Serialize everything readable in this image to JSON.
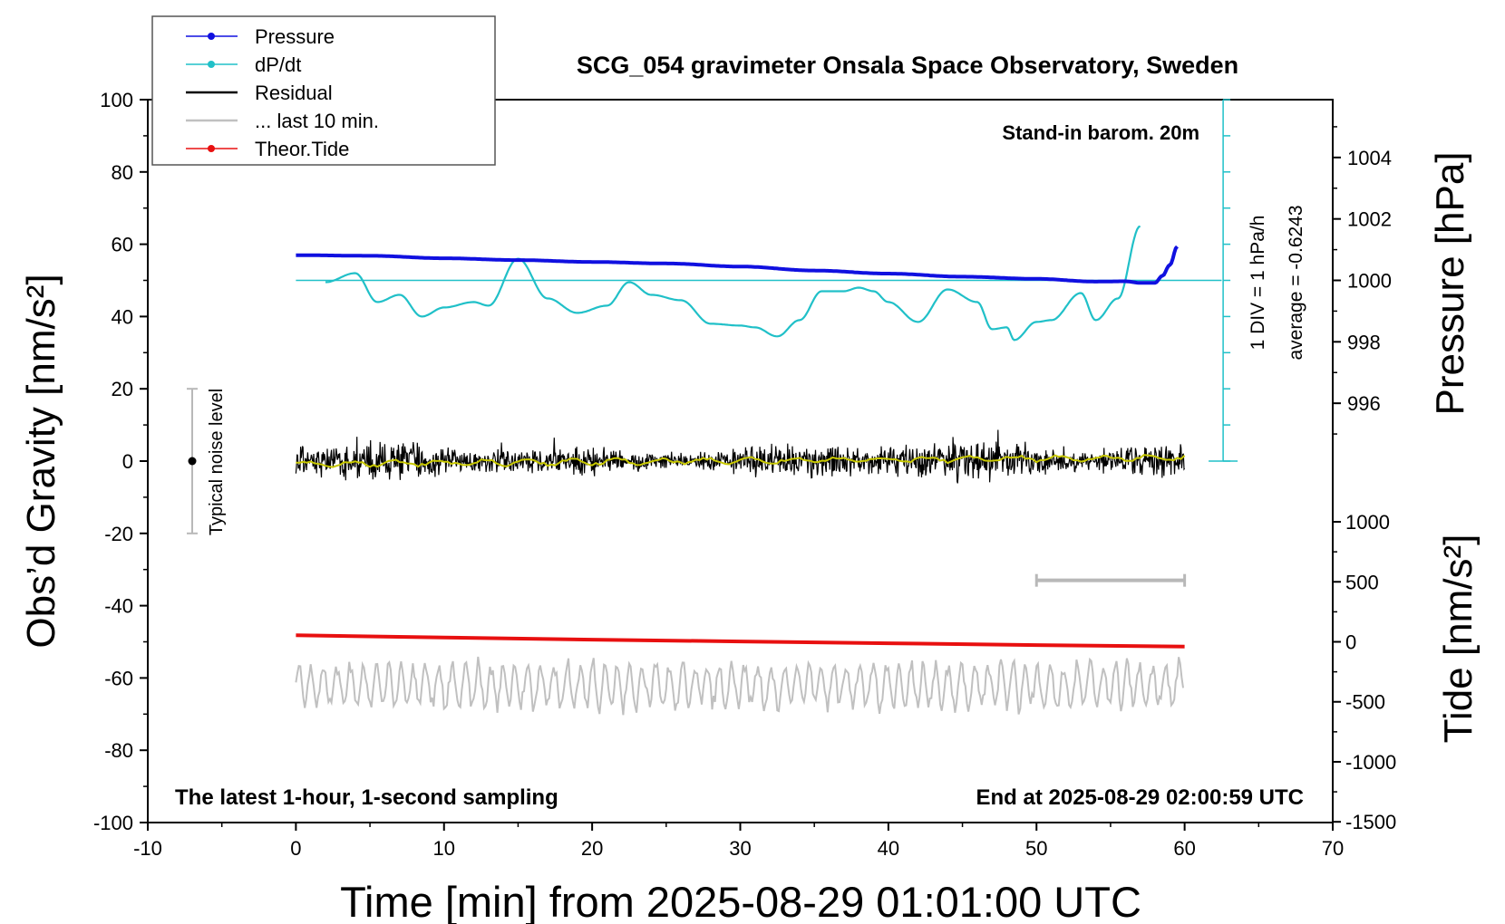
{
  "chart_data": {
    "type": "line",
    "title": "SCG_054 gravimeter Onsala Space Observatory, Sweden",
    "xlabel": "Time [min] from 2025-08-29 01:01:00 UTC",
    "ylabel_left": "Obs’d Gravity [nm/s²]",
    "ylabel_pressure": "Pressure [hPa]",
    "ylabel_tide": "Tide [nm/s²]",
    "xlim": [
      -10,
      70
    ],
    "ylim": [
      -100,
      100
    ],
    "xticks": [
      "-10",
      "0",
      "10",
      "20",
      "30",
      "40",
      "50",
      "60",
      "70"
    ],
    "xtick_values": [
      -10,
      0,
      10,
      20,
      30,
      40,
      50,
      60,
      70
    ],
    "yticks": [
      "-100",
      "-80",
      "-60",
      "-40",
      "-20",
      "0",
      "20",
      "40",
      "60",
      "80",
      "100"
    ],
    "ytick_values": [
      -100,
      -80,
      -60,
      -40,
      -20,
      0,
      20,
      40,
      60,
      80,
      100
    ],
    "pressure_axis": {
      "ticks": [
        "996",
        "998",
        "1000",
        "1002",
        "1004"
      ],
      "tick_values": [
        996,
        998,
        1000,
        1002,
        1004
      ],
      "range": [
        994,
        1006
      ]
    },
    "tide_axis": {
      "ticks": [
        "-1500",
        "-1000",
        "-500",
        "0",
        "500",
        "1000"
      ],
      "tick_values": [
        -1500,
        -1000,
        -500,
        0,
        500,
        1000
      ],
      "range": [
        -1500,
        1000
      ]
    },
    "legend_position": "top-left",
    "legend": [
      "Pressure",
      "dP/dt",
      "Residual",
      "... last 10 min.",
      "Theor.Tide"
    ],
    "annotations": {
      "stand_in": "Stand-in barom. 20m",
      "latest": "The latest 1-hour, 1-second sampling",
      "end_at": "End at 2025-08-29 02:00:59 UTC",
      "div": "1 DIV = 1 hPa/h",
      "average": "average = -0.6243",
      "noise": "Typical noise level"
    },
    "colors": {
      "pressure": "#1010e0",
      "dpdt": "#20c0c8",
      "residual": "#000000",
      "residual_smooth": "#c8c800",
      "last10": "#c0c0c0",
      "tide": "#e81010"
    },
    "series": [
      {
        "name": "Pressure",
        "unit": "hPa",
        "x": [
          0,
          5,
          10,
          15,
          20,
          25,
          30,
          35,
          40,
          45,
          50,
          54,
          56,
          57,
          58,
          58.5,
          59,
          59.5
        ],
        "values": [
          1000.82,
          1000.8,
          1000.72,
          1000.66,
          1000.6,
          1000.55,
          1000.45,
          1000.32,
          1000.22,
          1000.12,
          1000.05,
          999.96,
          999.97,
          999.92,
          999.92,
          1000.15,
          1000.5,
          1001.1
        ]
      },
      {
        "name": "dP/dt",
        "unit": "nm/s² (plot scale)",
        "x": [
          2,
          4,
          5.5,
          7,
          8.5,
          10,
          12,
          13,
          15,
          17,
          19,
          21,
          22.5,
          24,
          26,
          28,
          30,
          31,
          32.5,
          34,
          35.5,
          37,
          38,
          39,
          40,
          42,
          44,
          46,
          47,
          48,
          48.5,
          50,
          51,
          53,
          54,
          55.5,
          57
        ],
        "values": [
          49.5,
          52,
          44,
          46,
          40,
          42.5,
          44,
          43,
          56,
          45,
          41,
          43,
          49.5,
          46,
          44.5,
          38,
          37.5,
          37,
          34.5,
          39,
          47,
          47,
          48,
          47,
          44,
          38.5,
          47.5,
          44,
          36.5,
          37,
          33.5,
          38.5,
          39,
          46.5,
          39,
          45,
          65
        ]
      },
      {
        "name": "Residual",
        "unit": "nm/s²",
        "x": [
          0,
          60
        ],
        "values": [
          0,
          0
        ]
      },
      {
        "name": "... last 10 min.",
        "unit": "nm/s²",
        "x": [
          0,
          60
        ],
        "values": [
          -62,
          -62
        ]
      },
      {
        "name": "Theor.Tide",
        "unit": "nm/s²",
        "x": [
          0,
          10,
          20,
          30,
          40,
          50,
          60
        ],
        "values": [
          -48.2,
          -48.8,
          -49.4,
          -49.9,
          -50.4,
          -50.9,
          -51.3
        ]
      }
    ]
  }
}
